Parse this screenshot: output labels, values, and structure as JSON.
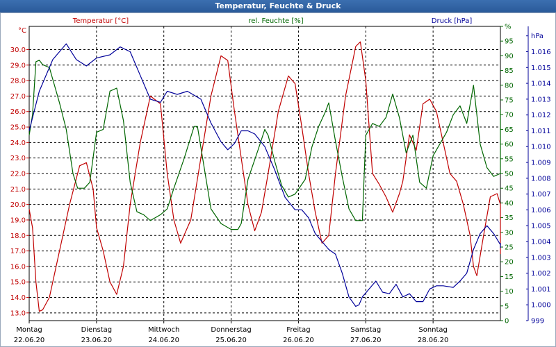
{
  "window": {
    "title": "Temperatur, Feuchte & Druck"
  },
  "chart_data": {
    "type": "line",
    "title": "Temperatur, Feuchte & Druck",
    "colors": {
      "temperature": "#c00000",
      "humidity": "#006600",
      "pressure": "#000099",
      "grid": "#000000"
    },
    "axes": {
      "temperature": {
        "label": "Temperatur [°C]",
        "unit": "°C",
        "ylim": [
          12.5,
          31.5
        ],
        "ticks": [
          13.0,
          14.0,
          15.0,
          16.0,
          17.0,
          18.0,
          19.0,
          20.0,
          21.0,
          22.0,
          23.0,
          24.0,
          25.0,
          26.0,
          27.0,
          28.0,
          29.0,
          30.0
        ],
        "tick_labels": [
          "13.0",
          "14.0",
          "15.0",
          "16.0",
          "17.0",
          "18.0",
          "19.0",
          "20.0",
          "21.0",
          "22.0",
          "23.0",
          "24.0",
          "25.0",
          "26.0",
          "27.0",
          "28.0",
          "29.0",
          "30.0"
        ]
      },
      "humidity": {
        "label": "rel. Feuchte [%]",
        "unit": "%",
        "ylim": [
          0,
          100
        ],
        "ticks": [
          0,
          5,
          10,
          15,
          20,
          25,
          30,
          35,
          40,
          45,
          50,
          55,
          60,
          65,
          70,
          75,
          80,
          85,
          90,
          95,
          100
        ],
        "tick_labels": [
          "0",
          "5",
          "10",
          "15",
          "20",
          "25",
          "30",
          "35",
          "40",
          "45",
          "50",
          "55",
          "60",
          "65",
          "70",
          "75",
          "80",
          "85",
          "90",
          "95",
          "%"
        ]
      },
      "pressure": {
        "label": "Druck [hPa]",
        "unit": "hPa",
        "ylim": [
          999,
          1017.6
        ],
        "ticks": [
          999,
          1000,
          1001,
          1002,
          1003,
          1004,
          1005,
          1006,
          1007,
          1008,
          1009,
          1010,
          1011,
          1012,
          1013,
          1014,
          1015,
          1016,
          1017
        ],
        "tick_labels": [
          "999",
          "1.000",
          "1.001",
          "1.002",
          "1.003",
          "1.004",
          "1.005",
          "1.006",
          "1.007",
          "1.008",
          "1.009",
          "1.010",
          "1.011",
          "1.012",
          "1.013",
          "1.014",
          "1.015",
          "1.016",
          "hPa"
        ]
      },
      "x": {
        "ticks": [
          0,
          1,
          2,
          3,
          4,
          5,
          6,
          7
        ],
        "day_labels": [
          "Montag",
          "Dienstag",
          "Mittwoch",
          "Donnerstag",
          "Freitag",
          "Samstag",
          "Sonntag"
        ],
        "date_labels": [
          "22.06.20",
          "23.06.20",
          "24.06.20",
          "25.06.20",
          "26.06.20",
          "27.06.20",
          "28.06.20"
        ],
        "xlim": [
          0,
          7
        ]
      }
    },
    "grid": true,
    "series": [
      {
        "name": "Temperatur [°C]",
        "axis": "temperature",
        "points": [
          [
            0,
            19.7
          ],
          [
            0.05,
            18.5
          ],
          [
            0.1,
            15
          ],
          [
            0.15,
            13.1
          ],
          [
            0.2,
            13.2
          ],
          [
            0.3,
            14
          ],
          [
            0.45,
            17
          ],
          [
            0.6,
            20
          ],
          [
            0.75,
            22.5
          ],
          [
            0.85,
            22.7
          ],
          [
            0.95,
            21
          ],
          [
            1.0,
            18.5
          ],
          [
            1.1,
            17
          ],
          [
            1.2,
            15
          ],
          [
            1.3,
            14.2
          ],
          [
            1.4,
            16
          ],
          [
            1.5,
            20
          ],
          [
            1.65,
            24
          ],
          [
            1.8,
            27
          ],
          [
            1.95,
            26.5
          ],
          [
            2.05,
            22
          ],
          [
            2.15,
            19
          ],
          [
            2.25,
            17.5
          ],
          [
            2.4,
            19
          ],
          [
            2.55,
            23
          ],
          [
            2.7,
            27
          ],
          [
            2.85,
            29.6
          ],
          [
            2.95,
            29.3
          ],
          [
            3.05,
            26
          ],
          [
            3.15,
            23
          ],
          [
            3.25,
            20
          ],
          [
            3.35,
            18.3
          ],
          [
            3.45,
            19.5
          ],
          [
            3.55,
            22
          ],
          [
            3.7,
            26
          ],
          [
            3.85,
            28.3
          ],
          [
            3.95,
            27.8
          ],
          [
            4.05,
            25
          ],
          [
            4.15,
            22
          ],
          [
            4.25,
            19.5
          ],
          [
            4.35,
            17.5
          ],
          [
            4.45,
            18
          ],
          [
            4.55,
            22
          ],
          [
            4.7,
            27
          ],
          [
            4.85,
            30.2
          ],
          [
            4.92,
            30.5
          ],
          [
            5.0,
            28
          ],
          [
            5.1,
            22
          ],
          [
            5.2,
            21.3
          ],
          [
            5.3,
            20.5
          ],
          [
            5.4,
            19.5
          ],
          [
            5.5,
            20.7
          ],
          [
            5.55,
            21.5
          ],
          [
            5.65,
            24.5
          ],
          [
            5.75,
            23.5
          ],
          [
            5.85,
            26.5
          ],
          [
            5.95,
            26.8
          ],
          [
            6.05,
            26
          ],
          [
            6.15,
            24
          ],
          [
            6.25,
            22
          ],
          [
            6.35,
            21.5
          ],
          [
            6.45,
            20
          ],
          [
            6.55,
            18
          ],
          [
            6.6,
            16
          ],
          [
            6.65,
            15.4
          ],
          [
            6.75,
            18
          ],
          [
            6.85,
            20.5
          ],
          [
            6.95,
            20.7
          ],
          [
            7.05,
            20
          ],
          [
            7.15,
            17.5
          ],
          [
            7.2,
            16.8
          ]
        ]
      },
      {
        "name": "rel. Feuchte [%]",
        "axis": "humidity",
        "points": [
          [
            0,
            63
          ],
          [
            0.05,
            70
          ],
          [
            0.1,
            88
          ],
          [
            0.15,
            88.5
          ],
          [
            0.2,
            87
          ],
          [
            0.3,
            86
          ],
          [
            0.45,
            74
          ],
          [
            0.55,
            65
          ],
          [
            0.65,
            50
          ],
          [
            0.72,
            45
          ],
          [
            0.82,
            45
          ],
          [
            0.9,
            47
          ],
          [
            1.0,
            64
          ],
          [
            1.1,
            65
          ],
          [
            1.2,
            78
          ],
          [
            1.3,
            79
          ],
          [
            1.4,
            68
          ],
          [
            1.5,
            47
          ],
          [
            1.6,
            37
          ],
          [
            1.7,
            36
          ],
          [
            1.8,
            34
          ],
          [
            1.95,
            36
          ],
          [
            2.05,
            38
          ],
          [
            2.15,
            45
          ],
          [
            2.3,
            55
          ],
          [
            2.45,
            66
          ],
          [
            2.5,
            66
          ],
          [
            2.6,
            52
          ],
          [
            2.7,
            38
          ],
          [
            2.85,
            33
          ],
          [
            3.0,
            31
          ],
          [
            3.1,
            31
          ],
          [
            3.15,
            33
          ],
          [
            3.25,
            48
          ],
          [
            3.4,
            58
          ],
          [
            3.5,
            65
          ],
          [
            3.55,
            63
          ],
          [
            3.65,
            54
          ],
          [
            3.75,
            46
          ],
          [
            3.85,
            42
          ],
          [
            3.95,
            43
          ],
          [
            4.1,
            48
          ],
          [
            4.2,
            59
          ],
          [
            4.3,
            66
          ],
          [
            4.4,
            71
          ],
          [
            4.45,
            74
          ],
          [
            4.55,
            61
          ],
          [
            4.65,
            49
          ],
          [
            4.75,
            38
          ],
          [
            4.85,
            34
          ],
          [
            4.95,
            34
          ],
          [
            5.0,
            63
          ],
          [
            5.1,
            67
          ],
          [
            5.2,
            66
          ],
          [
            5.3,
            69
          ],
          [
            5.4,
            77
          ],
          [
            5.5,
            69
          ],
          [
            5.6,
            57
          ],
          [
            5.7,
            63
          ],
          [
            5.8,
            47
          ],
          [
            5.9,
            45
          ],
          [
            6.0,
            56
          ],
          [
            6.1,
            60
          ],
          [
            6.2,
            64
          ],
          [
            6.3,
            70
          ],
          [
            6.4,
            73
          ],
          [
            6.5,
            67
          ],
          [
            6.6,
            80
          ],
          [
            6.7,
            60
          ],
          [
            6.8,
            52
          ],
          [
            6.9,
            49
          ],
          [
            7.0,
            50
          ],
          [
            7.1,
            65
          ],
          [
            7.2,
            72
          ]
        ]
      },
      {
        "name": "Druck [hPa]",
        "axis": "pressure",
        "points": [
          [
            0,
            1011
          ],
          [
            0.15,
            1013.5
          ],
          [
            0.35,
            1015.5
          ],
          [
            0.55,
            1016.5
          ],
          [
            0.7,
            1015.5
          ],
          [
            0.85,
            1015.1
          ],
          [
            1.0,
            1015.6
          ],
          [
            1.2,
            1015.8
          ],
          [
            1.35,
            1016.3
          ],
          [
            1.5,
            1016
          ],
          [
            1.65,
            1014.5
          ],
          [
            1.8,
            1013
          ],
          [
            1.95,
            1012.8
          ],
          [
            2.05,
            1013.5
          ],
          [
            2.2,
            1013.3
          ],
          [
            2.35,
            1013.5
          ],
          [
            2.55,
            1013
          ],
          [
            2.7,
            1011.5
          ],
          [
            2.85,
            1010.3
          ],
          [
            2.95,
            1009.8
          ],
          [
            3.05,
            1010.2
          ],
          [
            3.15,
            1011
          ],
          [
            3.25,
            1011
          ],
          [
            3.35,
            1010.8
          ],
          [
            3.5,
            1010
          ],
          [
            3.65,
            1008.5
          ],
          [
            3.8,
            1006.8
          ],
          [
            3.95,
            1006
          ],
          [
            4.05,
            1006
          ],
          [
            4.15,
            1005.5
          ],
          [
            4.25,
            1004.5
          ],
          [
            4.35,
            1004
          ],
          [
            4.45,
            1003.5
          ],
          [
            4.55,
            1003.2
          ],
          [
            4.65,
            1002
          ],
          [
            4.75,
            1000.5
          ],
          [
            4.85,
            999.9
          ],
          [
            4.9,
            1000
          ],
          [
            4.95,
            1000.5
          ],
          [
            5.05,
            1001
          ],
          [
            5.15,
            1001.5
          ],
          [
            5.25,
            1000.8
          ],
          [
            5.35,
            1000.7
          ],
          [
            5.45,
            1001.3
          ],
          [
            5.55,
            1000.5
          ],
          [
            5.65,
            1000.7
          ],
          [
            5.75,
            1000.2
          ],
          [
            5.85,
            1000.2
          ],
          [
            5.95,
            1001
          ],
          [
            6.05,
            1001.2
          ],
          [
            6.15,
            1001.2
          ],
          [
            6.3,
            1001.1
          ],
          [
            6.4,
            1001.5
          ],
          [
            6.5,
            1002
          ],
          [
            6.6,
            1003.5
          ],
          [
            6.7,
            1004.5
          ],
          [
            6.8,
            1005
          ],
          [
            6.9,
            1004.5
          ],
          [
            7.05,
            1003.8
          ],
          [
            7.15,
            1003.6
          ],
          [
            7.2,
            1003.9
          ]
        ]
      }
    ]
  }
}
